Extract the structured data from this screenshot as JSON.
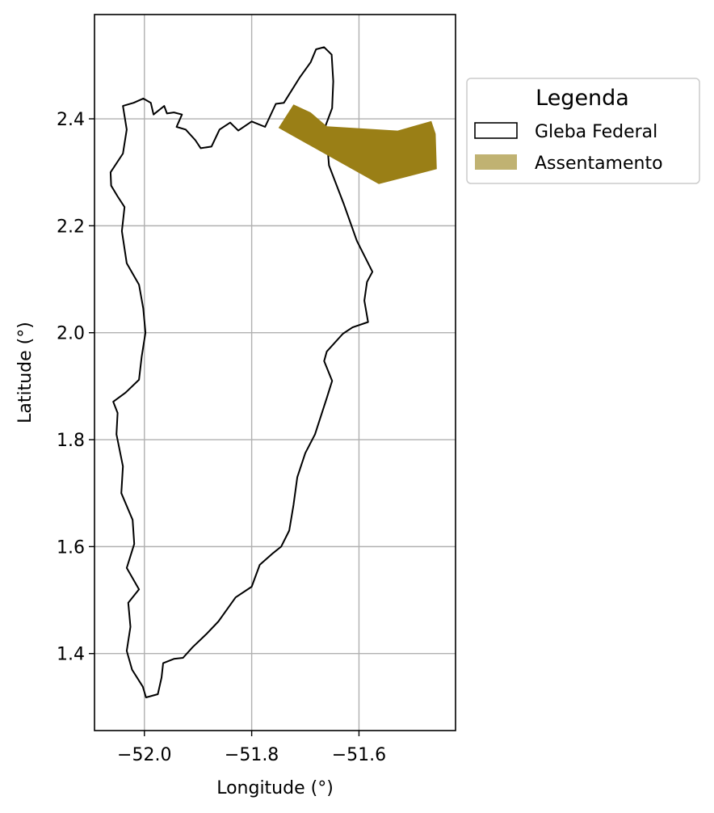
{
  "chart_data": {
    "type": "map",
    "xlabel": "Longitude (°)",
    "ylabel": "Latitude (°)",
    "xlim": [
      -52.093,
      -51.42
    ],
    "ylim": [
      1.256,
      2.595
    ],
    "xticks": [
      -52.0,
      -51.8,
      -51.6
    ],
    "xtick_labels": [
      "−52.0",
      "−51.8",
      "−51.6"
    ],
    "yticks": [
      1.4,
      1.6,
      1.8,
      2.0,
      2.2,
      2.4
    ],
    "ytick_labels": [
      "1.4",
      "1.6",
      "1.8",
      "2.0",
      "2.2",
      "2.4"
    ],
    "grid": true,
    "legend": {
      "title": "Legenda",
      "placement": "outside-right-top",
      "entries": [
        {
          "label": "Gleba Federal",
          "style": "outline",
          "edge_color": "#000000",
          "face_color": "#ffffff"
        },
        {
          "label": "Assentamento",
          "style": "fill",
          "face_color": "#c0b272"
        }
      ]
    },
    "layers": [
      {
        "name": "Gleba Federal",
        "edge_color": "#000000",
        "face_color": "none",
        "polygon": [
          [
            -51.963,
            2.424
          ],
          [
            -51.958,
            2.41
          ],
          [
            -51.945,
            2.412
          ],
          [
            -51.93,
            2.408
          ],
          [
            -51.94,
            2.385
          ],
          [
            -51.923,
            2.38
          ],
          [
            -51.905,
            2.36
          ],
          [
            -51.895,
            2.345
          ],
          [
            -51.875,
            2.348
          ],
          [
            -51.86,
            2.38
          ],
          [
            -51.84,
            2.393
          ],
          [
            -51.825,
            2.378
          ],
          [
            -51.8,
            2.395
          ],
          [
            -51.775,
            2.385
          ],
          [
            -51.755,
            2.428
          ],
          [
            -51.74,
            2.43
          ],
          [
            -51.71,
            2.478
          ],
          [
            -51.69,
            2.506
          ],
          [
            -51.68,
            2.53
          ],
          [
            -51.665,
            2.534
          ],
          [
            -51.651,
            2.52
          ],
          [
            -51.648,
            2.47
          ],
          [
            -51.65,
            2.42
          ],
          [
            -51.662,
            2.388
          ],
          [
            -51.656,
            2.313
          ],
          [
            -51.628,
            2.24
          ],
          [
            -51.604,
            2.172
          ],
          [
            -51.575,
            2.114
          ],
          [
            -51.585,
            2.095
          ],
          [
            -51.59,
            2.06
          ],
          [
            -51.583,
            2.02
          ],
          [
            -51.612,
            2.01
          ],
          [
            -51.63,
            1.998
          ],
          [
            -51.66,
            1.965
          ],
          [
            -51.665,
            1.947
          ],
          [
            -51.65,
            1.91
          ],
          [
            -51.66,
            1.878
          ],
          [
            -51.682,
            1.81
          ],
          [
            -51.7,
            1.775
          ],
          [
            -51.715,
            1.73
          ],
          [
            -51.722,
            1.678
          ],
          [
            -51.73,
            1.63
          ],
          [
            -51.745,
            1.6
          ],
          [
            -51.76,
            1.588
          ],
          [
            -51.785,
            1.566
          ],
          [
            -51.8,
            1.525
          ],
          [
            -51.83,
            1.505
          ],
          [
            -51.862,
            1.46
          ],
          [
            -51.885,
            1.436
          ],
          [
            -51.91,
            1.412
          ],
          [
            -51.928,
            1.392
          ],
          [
            -51.945,
            1.39
          ],
          [
            -51.965,
            1.382
          ],
          [
            -51.968,
            1.355
          ],
          [
            -51.975,
            1.324
          ],
          [
            -51.997,
            1.318
          ],
          [
            -52.003,
            1.338
          ],
          [
            -52.023,
            1.37
          ],
          [
            -52.033,
            1.405
          ],
          [
            -52.026,
            1.45
          ],
          [
            -52.03,
            1.495
          ],
          [
            -52.01,
            1.52
          ],
          [
            -52.033,
            1.56
          ],
          [
            -52.019,
            1.605
          ],
          [
            -52.022,
            1.65
          ],
          [
            -52.043,
            1.7
          ],
          [
            -52.04,
            1.75
          ],
          [
            -52.052,
            1.81
          ],
          [
            -52.05,
            1.85
          ],
          [
            -52.058,
            1.871
          ],
          [
            -52.035,
            1.888
          ],
          [
            -52.01,
            1.912
          ],
          [
            -52.005,
            1.955
          ],
          [
            -51.998,
            2.0
          ],
          [
            -52.002,
            2.045
          ],
          [
            -52.01,
            2.09
          ],
          [
            -52.033,
            2.13
          ],
          [
            -52.042,
            2.19
          ],
          [
            -52.037,
            2.235
          ],
          [
            -52.05,
            2.255
          ],
          [
            -52.062,
            2.275
          ],
          [
            -52.063,
            2.3
          ],
          [
            -52.04,
            2.335
          ],
          [
            -52.033,
            2.38
          ],
          [
            -52.04,
            2.424
          ],
          [
            -52.02,
            2.43
          ],
          [
            -52.002,
            2.438
          ],
          [
            -51.988,
            2.43
          ],
          [
            -51.983,
            2.408
          ],
          [
            -51.963,
            2.424
          ]
        ]
      },
      {
        "name": "Assentamento",
        "edge_color": "none",
        "face_color": "#9a7f16",
        "polygon": [
          [
            -51.75,
            2.383
          ],
          [
            -51.722,
            2.427
          ],
          [
            -51.69,
            2.412
          ],
          [
            -51.66,
            2.386
          ],
          [
            -51.528,
            2.378
          ],
          [
            -51.465,
            2.396
          ],
          [
            -51.457,
            2.372
          ],
          [
            -51.455,
            2.306
          ],
          [
            -51.563,
            2.278
          ],
          [
            -51.75,
            2.383
          ]
        ]
      }
    ]
  }
}
